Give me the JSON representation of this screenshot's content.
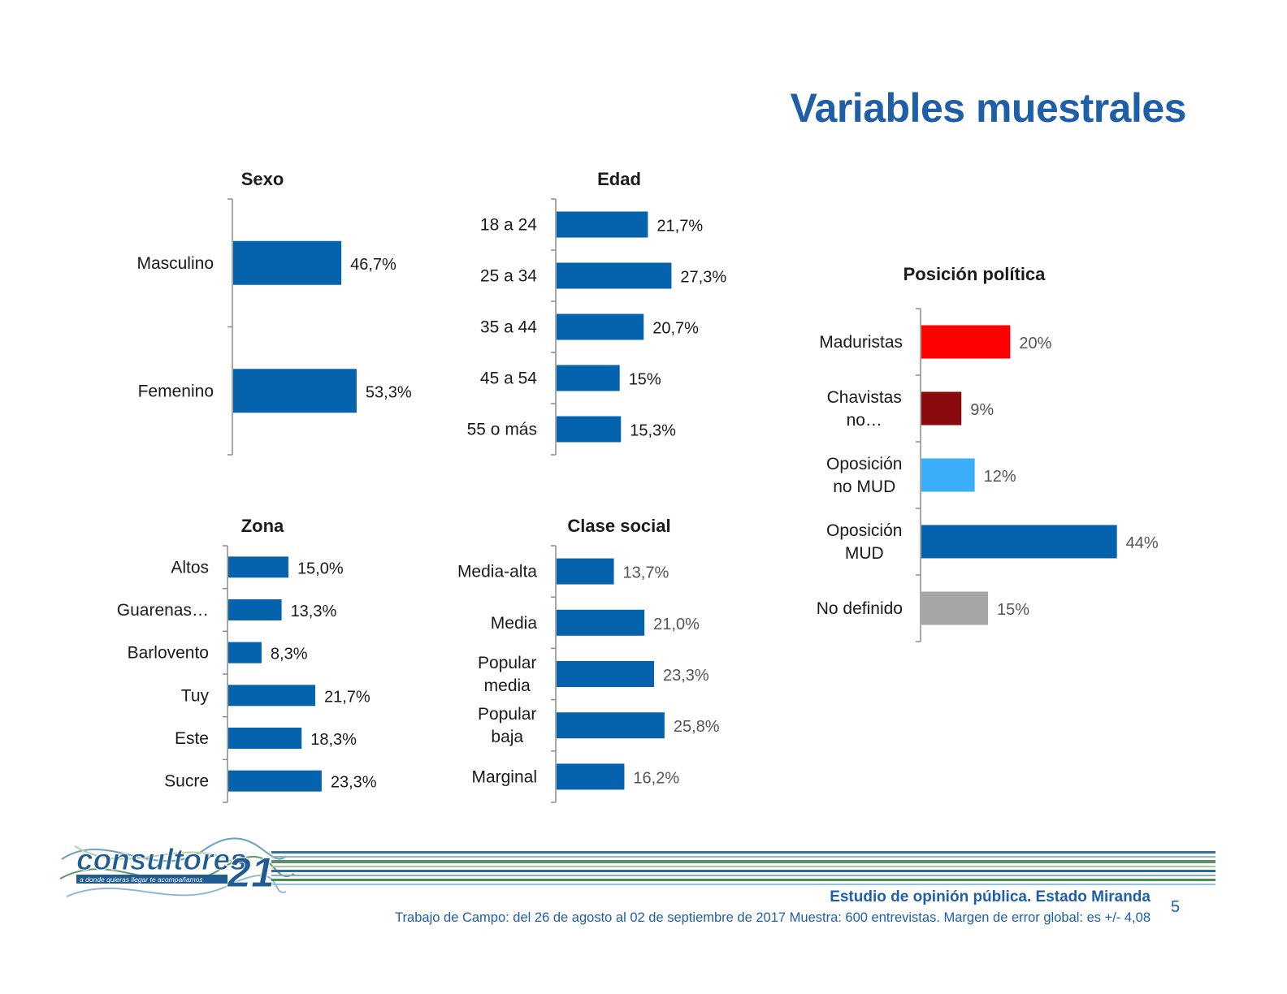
{
  "title": "Variables muestrales",
  "footer": {
    "study": "Estudio de opinión pública. Estado Miranda",
    "fieldwork": "Trabajo de Campo: del 26 de agosto al 02 de septiembre de 2017 Muestra: 600  entrevistas. Margen de error global: es +/- 4,08",
    "page_number": "5"
  },
  "logo": {
    "brand": "consultores",
    "number": "21",
    "tagline": "a donde quieras llegar te acompañamos"
  },
  "colors": {
    "primary_blue": "#0563ad",
    "title_blue": "#1f5fa8",
    "red": "#ff0000",
    "dark_red": "#8b0a0d",
    "light_blue": "#3aaef9",
    "gray": "#a6a6a6"
  },
  "chart_data": [
    {
      "id": "sexo",
      "type": "bar",
      "orientation": "horizontal",
      "title": "Sexo",
      "categories": [
        [
          "Masculino"
        ],
        [
          "Femenino"
        ]
      ],
      "values": [
        46.7,
        53.3
      ],
      "labels": [
        "46,7%",
        "53,3%"
      ],
      "value_unit": "%",
      "xlim": [
        0,
        100
      ]
    },
    {
      "id": "edad",
      "type": "bar",
      "orientation": "horizontal",
      "title": "Edad",
      "categories": [
        [
          "18 a 24"
        ],
        [
          "25 a 34"
        ],
        [
          "35 a 44"
        ],
        [
          "45 a 54"
        ],
        [
          "55 o más"
        ]
      ],
      "values": [
        21.7,
        27.3,
        20.7,
        15.0,
        15.3
      ],
      "labels": [
        "21,7%",
        "27,3%",
        "20,7%",
        "15%",
        "15,3%"
      ],
      "value_unit": "%",
      "xlim": [
        0,
        100
      ]
    },
    {
      "id": "zona",
      "type": "bar",
      "orientation": "horizontal",
      "title": "Zona",
      "categories": [
        [
          "Altos"
        ],
        [
          "Guarenas…"
        ],
        [
          "Barlovento"
        ],
        [
          "Tuy"
        ],
        [
          "Este"
        ],
        [
          "Sucre"
        ]
      ],
      "values": [
        15.0,
        13.3,
        8.3,
        21.7,
        18.3,
        23.3
      ],
      "labels": [
        "15,0%",
        "13,3%",
        "8,3%",
        "21,7%",
        "18,3%",
        "23,3%"
      ],
      "value_unit": "%",
      "xlim": [
        0,
        100
      ]
    },
    {
      "id": "clase-social",
      "type": "bar",
      "orientation": "horizontal",
      "title": "Clase social",
      "categories": [
        [
          "Media-alta"
        ],
        [
          "Media"
        ],
        [
          "Popular",
          "media"
        ],
        [
          "Popular",
          "baja"
        ],
        [
          "Marginal"
        ]
      ],
      "values": [
        13.7,
        21.0,
        23.3,
        25.8,
        16.2
      ],
      "labels": [
        "13,7%",
        "21,0%",
        "23,3%",
        "25,8%",
        "16,2%"
      ],
      "value_unit": "%",
      "xlim": [
        0,
        100
      ]
    },
    {
      "id": "posicion-politica",
      "type": "bar",
      "orientation": "horizontal",
      "title": "Posición política",
      "categories": [
        [
          "Maduristas"
        ],
        [
          "Chavistas",
          "no…"
        ],
        [
          "Oposición",
          "no MUD"
        ],
        [
          "Oposición",
          "MUD"
        ],
        [
          "No definido"
        ]
      ],
      "values": [
        20,
        9,
        12,
        44,
        15
      ],
      "labels": [
        "20%",
        "9%",
        "12%",
        "44%",
        "15%"
      ],
      "bar_colors": [
        "#ff0000",
        "#8b0a0d",
        "#3aaef9",
        "#0563ad",
        "#a6a6a6"
      ],
      "value_unit": "%",
      "xlim": [
        0,
        100
      ]
    }
  ]
}
